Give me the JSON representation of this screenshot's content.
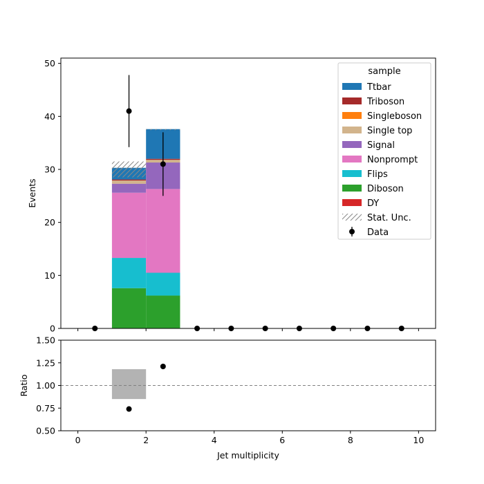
{
  "chart_data": {
    "type": "bar",
    "stacked": true,
    "legend_title": "sample",
    "legend_placement": "top-right",
    "x": {
      "label": "Jet multiplicity",
      "lim": [
        -0.5,
        10.5
      ],
      "ticks": [
        0,
        2,
        4,
        6,
        8,
        10
      ],
      "tick_labels": [
        "0",
        "2",
        "4",
        "6",
        "8",
        "10"
      ]
    },
    "bins": [
      [
        1,
        2
      ],
      [
        2,
        3
      ]
    ],
    "main": {
      "ylabel": "Events",
      "ylim": [
        0,
        51
      ],
      "ticks": [
        0,
        10,
        20,
        30,
        40,
        50
      ],
      "tick_labels": [
        "0",
        "10",
        "20",
        "30",
        "40",
        "50"
      ]
    },
    "series": [
      {
        "name": "Diboson",
        "color": "#2ca02c",
        "values": [
          7.6,
          6.2
        ]
      },
      {
        "name": "Flips",
        "color": "#17becf",
        "values": [
          5.7,
          4.3
        ]
      },
      {
        "name": "Nonprompt",
        "color": "#e377c2",
        "values": [
          12.3,
          15.8
        ]
      },
      {
        "name": "Signal",
        "color": "#9467bd",
        "values": [
          1.7,
          5.0
        ]
      },
      {
        "name": "Single top",
        "color": "#d2b48c",
        "values": [
          0.6,
          0.5
        ]
      },
      {
        "name": "Singleboson",
        "color": "#ff7f0e",
        "values": [
          0.0,
          0.0
        ]
      },
      {
        "name": "Triboson",
        "color": "#a52a2a",
        "values": [
          0.2,
          0.2
        ]
      },
      {
        "name": "Ttbar",
        "color": "#1f77b4",
        "values": [
          2.2,
          5.6
        ]
      },
      {
        "name": "DY",
        "color": "#d62728",
        "values": [
          0.0,
          0.0
        ]
      }
    ],
    "legend_order": [
      "Ttbar",
      "Triboson",
      "Singleboson",
      "Single top",
      "Signal",
      "Nonprompt",
      "Flips",
      "Diboson",
      "DY"
    ],
    "stat_unc": {
      "name": "Stat. Unc.",
      "bands": [
        {
          "x0": 1,
          "x1": 2,
          "low": 28.5,
          "high": 31.5
        },
        {
          "x0": 2,
          "x1": 3,
          "low": 37.4,
          "high": 37.6
        }
      ]
    },
    "data_points": {
      "name": "Data",
      "x": [
        0.5,
        1.5,
        2.5,
        3.5,
        4.5,
        5.5,
        6.5,
        7.5,
        8.5,
        9.5
      ],
      "y": [
        0,
        41,
        31,
        0,
        0,
        0,
        0,
        0,
        0,
        0
      ],
      "err": [
        0,
        6.8,
        6.0,
        0,
        0,
        0,
        0,
        0,
        0,
        0
      ]
    },
    "ratio": {
      "ylabel": "Ratio",
      "ylim": [
        0.5,
        1.5
      ],
      "ticks": [
        0.5,
        0.75,
        1.0,
        1.25,
        1.5
      ],
      "tick_labels": [
        "0.50",
        "0.75",
        "1.00",
        "1.25",
        "1.50"
      ],
      "reference": 1.0,
      "points": {
        "x": [
          1.5,
          2.5
        ],
        "y": [
          0.74,
          1.21
        ]
      },
      "unc_band": {
        "x0": 1,
        "x1": 2,
        "low": 0.85,
        "high": 1.18
      }
    }
  }
}
